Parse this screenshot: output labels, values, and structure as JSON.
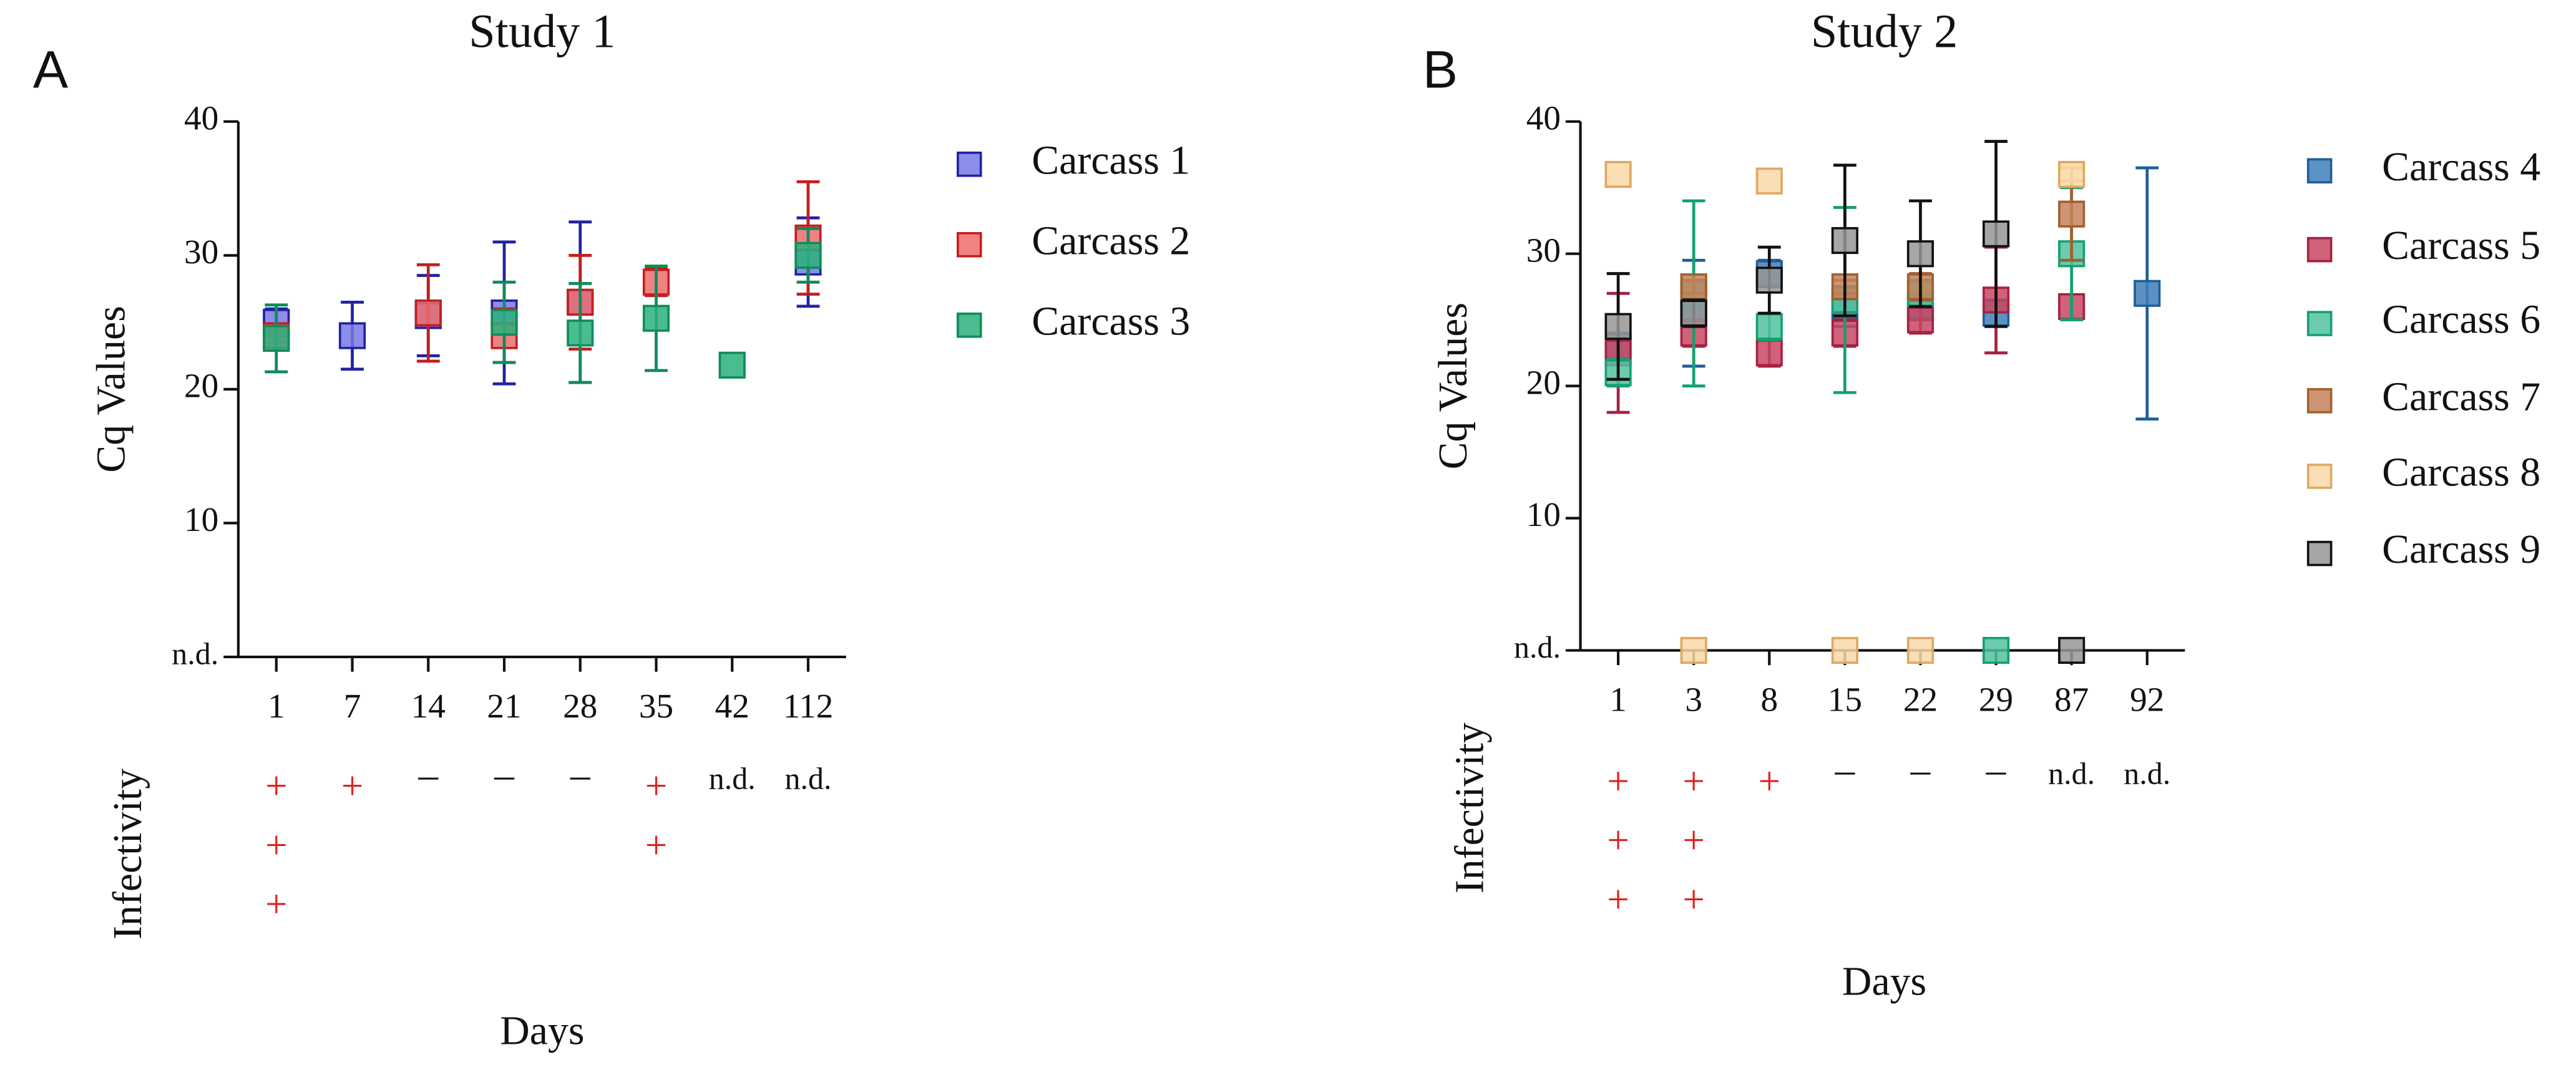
{
  "chart_data": [
    {
      "type": "scatter",
      "panel_label": "A",
      "title": "Study 1",
      "ylabel": "Cq Values",
      "xlabel": "Days",
      "infectivity_label": "Infectivity",
      "categories": [
        "1",
        "7",
        "14",
        "21",
        "28",
        "35",
        "42",
        "112"
      ],
      "infectivity": [
        [
          "+",
          "+",
          "+"
        ],
        [
          "+"
        ],
        [
          "–"
        ],
        [
          "–"
        ],
        [
          "–"
        ],
        [
          "+",
          "+"
        ],
        [
          "n.d."
        ],
        [
          "n.d."
        ]
      ],
      "ylim": [
        0,
        40
      ],
      "yticks": [
        {
          "value": 0,
          "label": "n.d."
        },
        10,
        20,
        30,
        40
      ],
      "series": [
        {
          "name": "Carcass 1",
          "color": "#7878e6",
          "edge_color": "#2222a0",
          "values": [
            25,
            24,
            25.5,
            25.7,
            26.5,
            null,
            null,
            29.5
          ],
          "errors": [
            1,
            2.5,
            3,
            5.3,
            6,
            null,
            null,
            3.3
          ]
        },
        {
          "name": "Carcass 2",
          "color": "#ec6c6c",
          "edge_color": "#c41e1e",
          "values": [
            24,
            null,
            25.7,
            24,
            26.5,
            28,
            null,
            31.3
          ],
          "errors": [
            0.5,
            null,
            3.6,
            2,
            3.5,
            1,
            null,
            4.2
          ]
        },
        {
          "name": "Carcass 3",
          "color": "#2cb07c",
          "edge_color": "#0e8c5a",
          "values": [
            23.8,
            null,
            null,
            25,
            24.2,
            25.3,
            21.8,
            30
          ],
          "errors": [
            2.5,
            null,
            null,
            3,
            3.7,
            3.9,
            0,
            2
          ]
        }
      ]
    },
    {
      "type": "scatter",
      "panel_label": "B",
      "title": "Study 2",
      "ylabel": "Cq Values",
      "xlabel": "Days",
      "infectivity_label": "Infectivity",
      "categories": [
        "1",
        "3",
        "8",
        "15",
        "22",
        "29",
        "87",
        "92"
      ],
      "infectivity": [
        [
          "+",
          "+",
          "+"
        ],
        [
          "+",
          "+",
          "+"
        ],
        [
          "+"
        ],
        [
          "–"
        ],
        [
          "–"
        ],
        [
          "–"
        ],
        [
          "n.d."
        ],
        [
          "n.d."
        ]
      ],
      "ylim": [
        0,
        40
      ],
      "yticks": [
        {
          "value": 0,
          "label": "n.d."
        },
        10,
        20,
        30,
        40
      ],
      "series": [
        {
          "name": "Carcass 4",
          "color": "#3f7fb8",
          "edge_color": "#1f5f98",
          "values": [
            23,
            25.5,
            28.5,
            26,
            26,
            25.5,
            null,
            27
          ],
          "errors": [
            1,
            4,
            1,
            1.5,
            1,
            1,
            null,
            9.5
          ]
        },
        {
          "name": "Carcass 5",
          "color": "#c84862",
          "edge_color": "#a82042",
          "values": [
            22.5,
            24,
            22.5,
            24,
            25,
            26.5,
            26,
            null
          ],
          "errors": [
            4.5,
            1,
            1,
            1,
            1,
            4,
            0,
            null
          ]
        },
        {
          "name": "Carcass 6",
          "color": "#52c2a0",
          "edge_color": "#14a070",
          "values": [
            21,
            27,
            24.5,
            26.5,
            27,
            0,
            30,
            null
          ],
          "errors": [
            1,
            7,
            1,
            7,
            1,
            0,
            5,
            null
          ]
        },
        {
          "name": "Carcass 7",
          "color": "#c4825a",
          "edge_color": "#a0602e",
          "values": [
            null,
            27.5,
            null,
            27.5,
            27.5,
            null,
            33,
            null
          ],
          "errors": [
            null,
            0.5,
            null,
            0.5,
            1,
            null,
            3.5,
            null
          ]
        },
        {
          "name": "Carcass 8",
          "color": "#fad8a8",
          "edge_color": "#e0a860",
          "values": [
            36,
            0,
            35.5,
            0,
            0,
            null,
            36,
            null
          ],
          "errors": [
            0,
            0,
            0,
            0,
            0,
            null,
            0.5,
            null
          ]
        },
        {
          "name": "Carcass 9",
          "color": "#969696",
          "edge_color": "#111111",
          "values": [
            24.5,
            25.5,
            28,
            31,
            30,
            31.5,
            0,
            null
          ],
          "errors": [
            4,
            1,
            2.5,
            5.7,
            4,
            7,
            0,
            null
          ]
        }
      ]
    }
  ]
}
